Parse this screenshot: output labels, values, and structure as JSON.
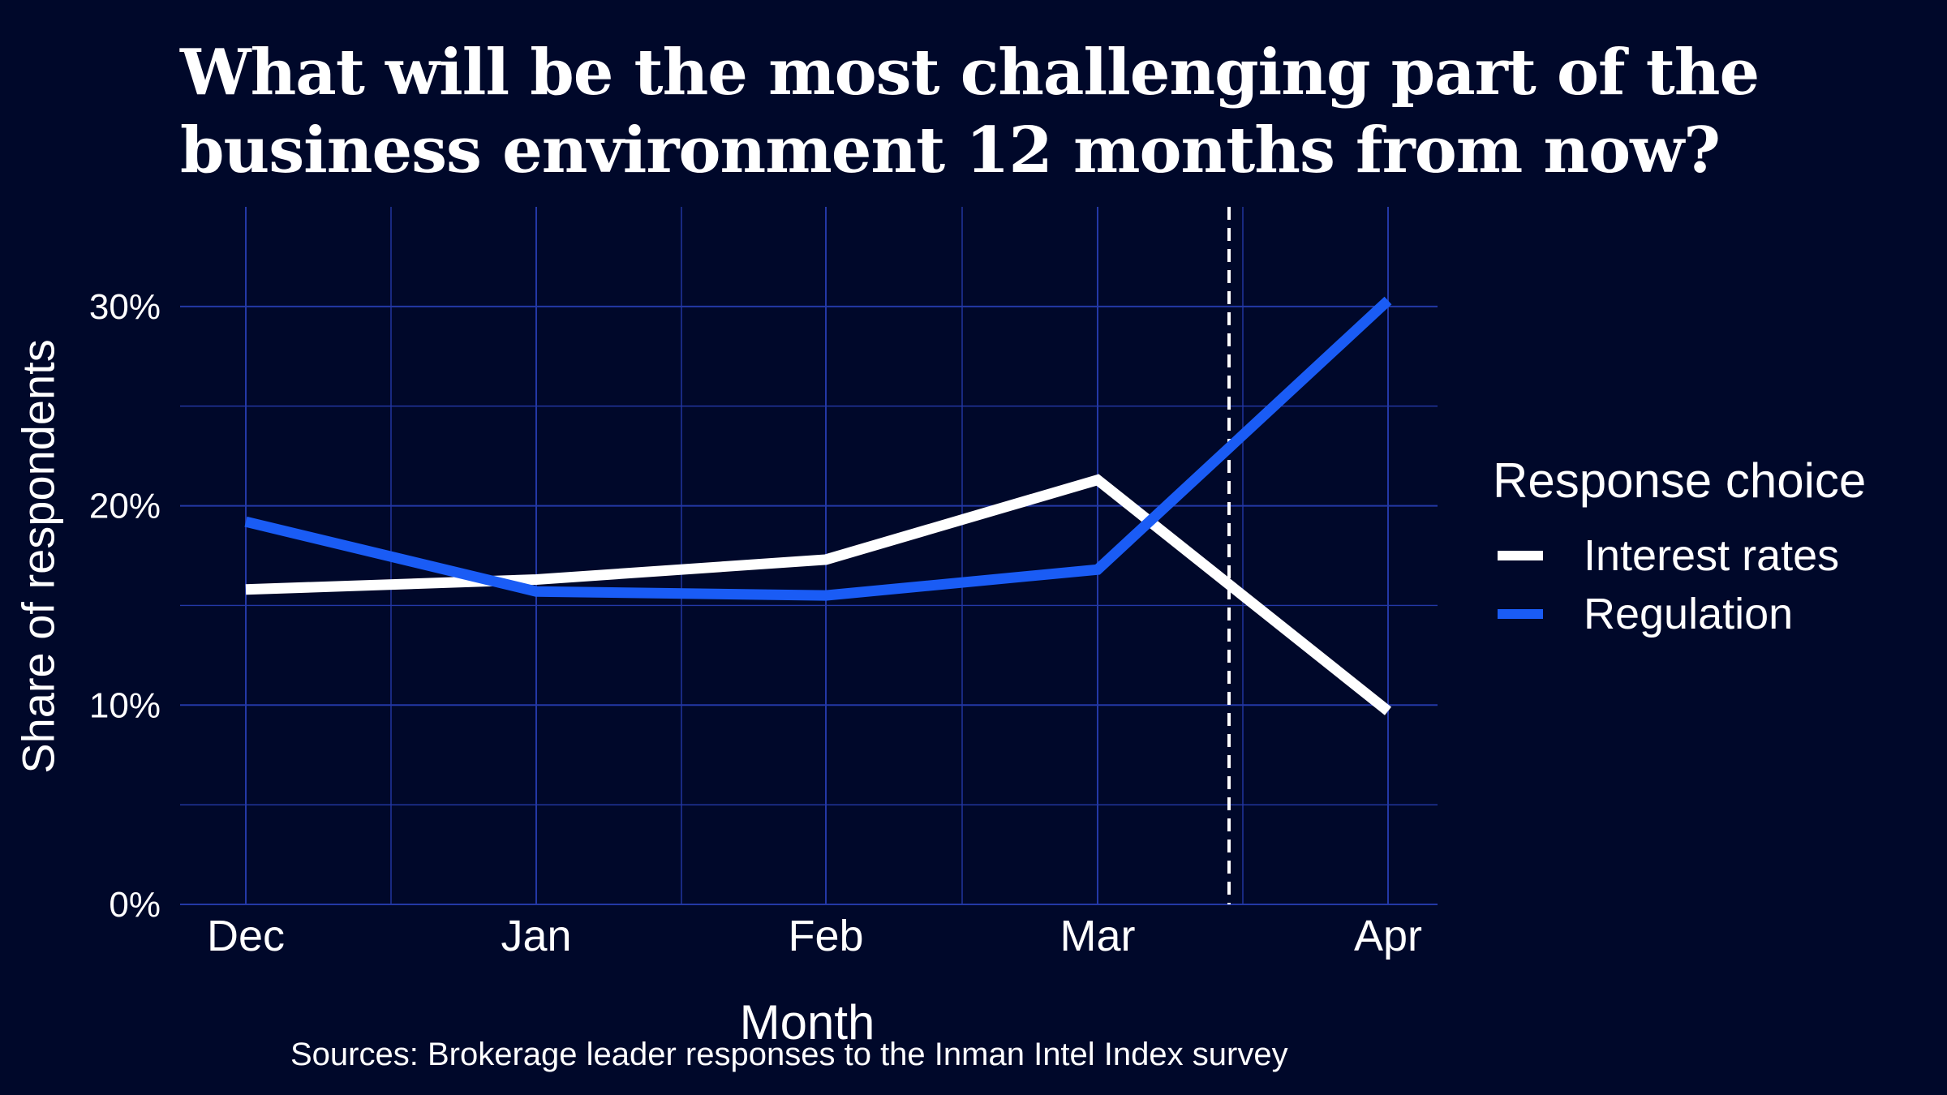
{
  "chart_data": {
    "type": "line",
    "title": "What will be the most challenging part of the business environment 12 months from now?",
    "title_lines": [
      "What will be the most challenging part of the",
      "business environment 12 months from now?"
    ],
    "xlabel": "Month",
    "ylabel": "Share of respondents",
    "categories": [
      "Dec",
      "Jan",
      "Feb",
      "Mar",
      "Apr"
    ],
    "y_ticks": [
      "0%",
      "10%",
      "20%",
      "30%"
    ],
    "ylim": [
      0,
      35
    ],
    "grid": true,
    "legend": {
      "title": "Response choice",
      "placement": "right"
    },
    "series": [
      {
        "name": "Interest rates",
        "color": "#ffffff",
        "values": [
          15.8,
          16.3,
          17.3,
          21.3,
          9.7
        ]
      },
      {
        "name": "Regulation",
        "color": "#1a5cf5",
        "values": [
          19.2,
          15.7,
          15.5,
          16.8,
          30.3
        ]
      }
    ],
    "annotations": [
      {
        "type": "vline",
        "style": "dashed",
        "color": "#ffffff",
        "x": "between Mar and Apr"
      }
    ],
    "source": "Sources: Brokerage leader responses to the Inman Intel Index survey"
  },
  "colors": {
    "background": "#00082a",
    "grid": "#2338a6",
    "text": "#ffffff"
  }
}
